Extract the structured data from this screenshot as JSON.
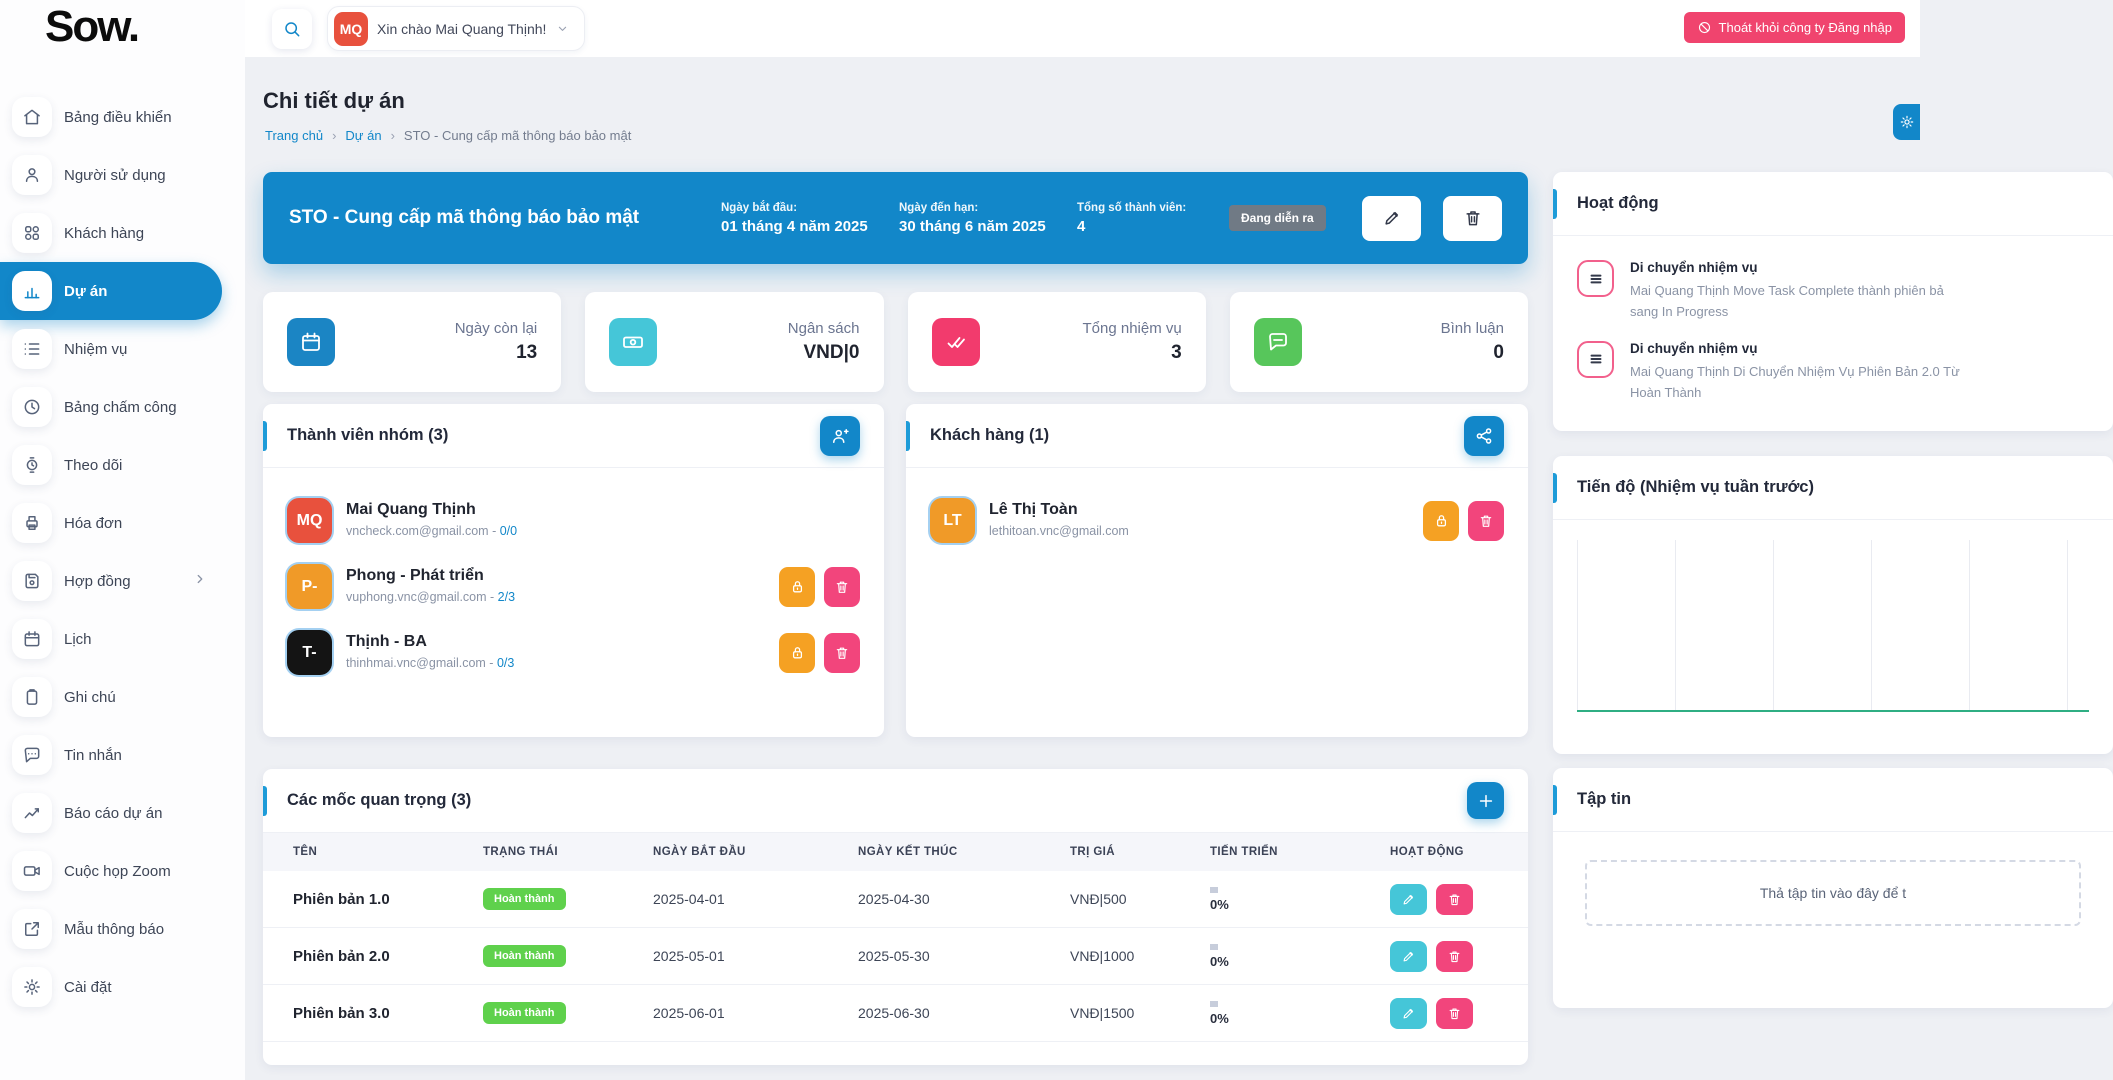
{
  "brand": {
    "logo": "Sow."
  },
  "colors": {
    "primary": "#1287c9",
    "pink": "#f2457c",
    "orange": "#f5a123",
    "green_badge": "#5fd14c",
    "teal": "#45c6d8",
    "accent_bar": "#1d9bd8",
    "chart_baseline": "#2fae83",
    "logout_pink": "#f0446e"
  },
  "topbar": {
    "greeting": "Xin chào Mai Quang Thịnh!",
    "avatar_initials": "MQ",
    "logout_label": "Thoát khỏi công ty Đăng nhập"
  },
  "sidebar": {
    "items": [
      {
        "id": "dashboard",
        "label": "Bảng điều khiển",
        "icon": "home",
        "active": false
      },
      {
        "id": "users",
        "label": "Người sử dụng",
        "icon": "user",
        "active": false
      },
      {
        "id": "customers",
        "label": "Khách hàng",
        "icon": "clients",
        "active": false
      },
      {
        "id": "projects",
        "label": "Dự án",
        "icon": "projects",
        "active": true
      },
      {
        "id": "tasks",
        "label": "Nhiệm vụ",
        "icon": "tasks",
        "active": false
      },
      {
        "id": "timesheet",
        "label": "Bảng chấm công",
        "icon": "clock",
        "active": false
      },
      {
        "id": "tracking",
        "label": "Theo dõi",
        "icon": "watch",
        "active": false
      },
      {
        "id": "invoices",
        "label": "Hóa đơn",
        "icon": "printer",
        "active": false
      },
      {
        "id": "contracts",
        "label": "Hợp đồng",
        "icon": "save",
        "active": false,
        "chevron": true
      },
      {
        "id": "calendar",
        "label": "Lịch",
        "icon": "calendar",
        "active": false
      },
      {
        "id": "notes",
        "label": "Ghi chú",
        "icon": "note",
        "active": false
      },
      {
        "id": "messages",
        "label": "Tin nhắn",
        "icon": "chat",
        "active": false
      },
      {
        "id": "project-reports",
        "label": "Báo cáo dự án",
        "icon": "report",
        "active": false
      },
      {
        "id": "zoom-meetings",
        "label": "Cuộc họp Zoom",
        "icon": "video",
        "active": false
      },
      {
        "id": "notice-templates",
        "label": "Mẫu thông báo",
        "icon": "template",
        "active": false
      },
      {
        "id": "settings",
        "label": "Cài đặt",
        "icon": "gear",
        "active": false
      }
    ]
  },
  "page": {
    "title": "Chi tiết dự án",
    "breadcrumb": [
      "Trang chủ",
      "Dự án",
      "STO - Cung cấp mã thông báo bảo mật"
    ]
  },
  "project_header": {
    "title": "STO - Cung cấp mã thông báo bảo mật",
    "start_label": "Ngày bắt đầu:",
    "start_value": "01 tháng 4 năm 2025",
    "due_label": "Ngày đến hạn:",
    "due_value": "30 tháng 6 năm 2025",
    "members_label": "Tổng số thành viên:",
    "members_value": "4",
    "status_badge": "Đang diễn ra"
  },
  "stats": [
    {
      "id": "days-left",
      "label": "Ngày còn lại",
      "value": "13",
      "icon": "calendar",
      "color": "#1b85c4"
    },
    {
      "id": "budget",
      "label": "Ngân sách",
      "value": "VND|0",
      "icon": "money",
      "color": "#45c6d8"
    },
    {
      "id": "total-tasks",
      "label": "Tổng nhiệm vụ",
      "value": "3",
      "icon": "checks",
      "color": "#f23b6d"
    },
    {
      "id": "comments",
      "label": "Bình luận",
      "value": "0",
      "icon": "comment",
      "color": "#57c65b"
    }
  ],
  "team": {
    "title": "Thành viên nhóm (3)",
    "members": [
      {
        "initials": "MQ",
        "color": "#e8513d",
        "name": "Mai Quang Thịnh",
        "email": "vncheck.com@gmail.com",
        "ratio": "0/0",
        "actions": false
      },
      {
        "initials": "P-",
        "color": "#f09a28",
        "name": "Phong - Phát triển",
        "email": "vuphong.vnc@gmail.com",
        "ratio": "2/3",
        "actions": true
      },
      {
        "initials": "T-",
        "color": "#141414",
        "name": "Thịnh - BA",
        "email": "thinhmai.vnc@gmail.com",
        "ratio": "0/3",
        "actions": true
      }
    ]
  },
  "customers": {
    "title": "Khách hàng (1)",
    "items": [
      {
        "initials": "LT",
        "color": "#f09a28",
        "name": "Lê Thị Toàn",
        "email": "lethitoan.vnc@gmail.com",
        "ratio": "",
        "actions": true
      }
    ]
  },
  "milestones": {
    "title": "Các mốc quan trọng (3)",
    "columns": [
      "TÊN",
      "TRẠNG THÁI",
      "NGÀY BẮT ĐẦU",
      "NGÀY KẾT THÚC",
      "TRỊ GIÁ",
      "TIẾN TRIỂN",
      "HOẠT ĐỘNG"
    ],
    "rows": [
      {
        "name": "Phiên bản 1.0",
        "status": "Hoàn thành",
        "start": "2025-04-01",
        "end": "2025-04-30",
        "value": "VNĐ|500",
        "progress": "0%"
      },
      {
        "name": "Phiên bản 2.0",
        "status": "Hoàn thành",
        "start": "2025-05-01",
        "end": "2025-05-30",
        "value": "VNĐ|1000",
        "progress": "0%"
      },
      {
        "name": "Phiên bản 3.0",
        "status": "Hoàn thành",
        "start": "2025-06-01",
        "end": "2025-06-30",
        "value": "VNĐ|1500",
        "progress": "0%"
      }
    ]
  },
  "activity": {
    "title": "Hoạt động",
    "items": [
      {
        "title": "Di chuyển nhiệm vụ",
        "line1": "Mai Quang Thịnh Move Task Complete thành phiên bả",
        "line2": "sang In Progress"
      },
      {
        "title": "Di chuyển nhiệm vụ",
        "line1": "Mai Quang Thịnh Di Chuyển Nhiệm Vụ Phiên Bản 2.0 Từ",
        "line2": "Hoàn Thành"
      }
    ]
  },
  "progress_panel": {
    "title": "Tiến độ (Nhiệm vụ tuần trước)"
  },
  "files_panel": {
    "title": "Tập tin",
    "dropzone_text": "Thả tập tin vào đây để t"
  }
}
